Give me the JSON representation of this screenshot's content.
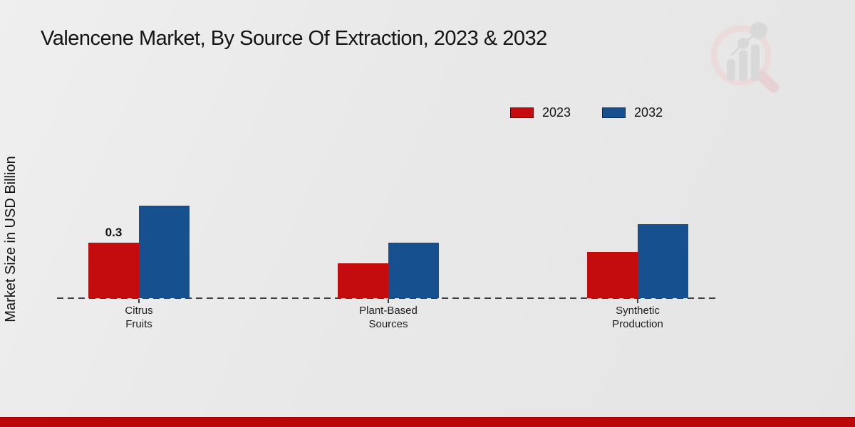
{
  "title": "Valencene Market, By Source Of Extraction, 2023 & 2032",
  "y_axis_label": "Market Size in USD Billion",
  "legend": {
    "items": [
      {
        "label": "2023",
        "color": "#c40b0e"
      },
      {
        "label": "2032",
        "color": "#16508e"
      }
    ]
  },
  "colors": {
    "series_2023_red": "#c40b0e",
    "series_2032_blue": "#16508e",
    "footer_band_red": "#bb0707",
    "axis_dash": "#3d3d3d",
    "background": "#e9e9e9"
  },
  "watermark_icon": "magnifier-bar-chart-logo",
  "chart_data": {
    "type": "bar",
    "categories": [
      "Citrus\nFruits",
      "Plant-Based\nSources",
      "Synthetic\nProduction"
    ],
    "series": [
      {
        "name": "2023",
        "color": "#c40b0e",
        "values": [
          0.3,
          0.19,
          0.25
        ],
        "labels": [
          "0.3",
          "",
          ""
        ]
      },
      {
        "name": "2032",
        "color": "#16508e",
        "values": [
          0.5,
          0.3,
          0.4
        ],
        "labels": [
          "",
          "",
          ""
        ]
      }
    ],
    "title": "Valencene Market, By Source Of Extraction, 2023 & 2032",
    "xlabel": "",
    "ylabel": "Market Size in USD Billion",
    "ylim": [
      0,
      0.55
    ],
    "grid": false,
    "legend_position": "upper-center-right",
    "baseline_style": "dashed",
    "value_labels_shown": [
      "Citrus Fruits 2023 = 0.3"
    ]
  }
}
